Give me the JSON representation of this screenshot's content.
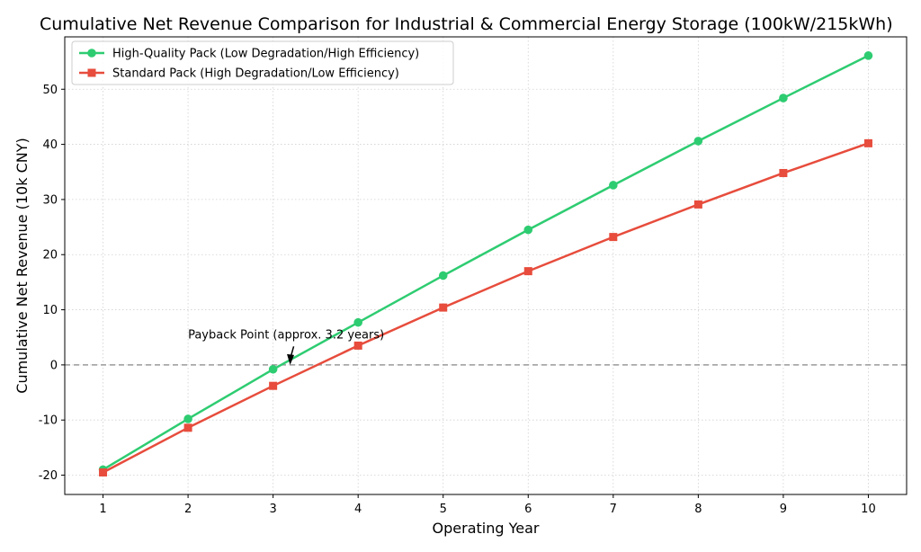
{
  "chart_data": {
    "type": "line",
    "title": "Cumulative Net Revenue Comparison for Industrial & Commercial Energy Storage (100kW/215kWh)",
    "xlabel": "Operating Year",
    "ylabel": "Cumulative Net Revenue (10k CNY)",
    "x": [
      1,
      2,
      3,
      4,
      5,
      6,
      7,
      8,
      9,
      10
    ],
    "xlim": [
      0.55,
      10.45
    ],
    "ylim": [
      -23.5,
      59.5
    ],
    "xticks": [
      "1",
      "2",
      "3",
      "4",
      "5",
      "6",
      "7",
      "8",
      "9",
      "10"
    ],
    "yticks": [
      "-20",
      "-10",
      "0",
      "10",
      "20",
      "30",
      "40",
      "50"
    ],
    "ytick_values": [
      -20,
      -10,
      0,
      10,
      20,
      30,
      40,
      50
    ],
    "grid": true,
    "legend_position": "upper-left",
    "series": [
      {
        "name": "High-Quality Pack (Low Degradation/High Efficiency)",
        "color": "#2ecc71",
        "marker": "circle",
        "values": [
          -19.0,
          -9.8,
          -0.8,
          7.7,
          16.2,
          24.5,
          32.6,
          40.6,
          48.4,
          56.1
        ]
      },
      {
        "name": "Standard Pack (High Degradation/Low Efficiency)",
        "color": "#e74c3c",
        "marker": "square",
        "values": [
          -19.5,
          -11.4,
          -3.8,
          3.5,
          10.4,
          17.0,
          23.2,
          29.1,
          34.8,
          40.2
        ]
      }
    ],
    "reference_line": {
      "y": 0,
      "style": "dashed",
      "color": "#999999"
    },
    "annotation": {
      "text": "Payback Point (approx. 3.2 years)",
      "point_x": 3.2,
      "point_y": 0,
      "text_x": 2.0,
      "text_y": 4.5
    }
  }
}
